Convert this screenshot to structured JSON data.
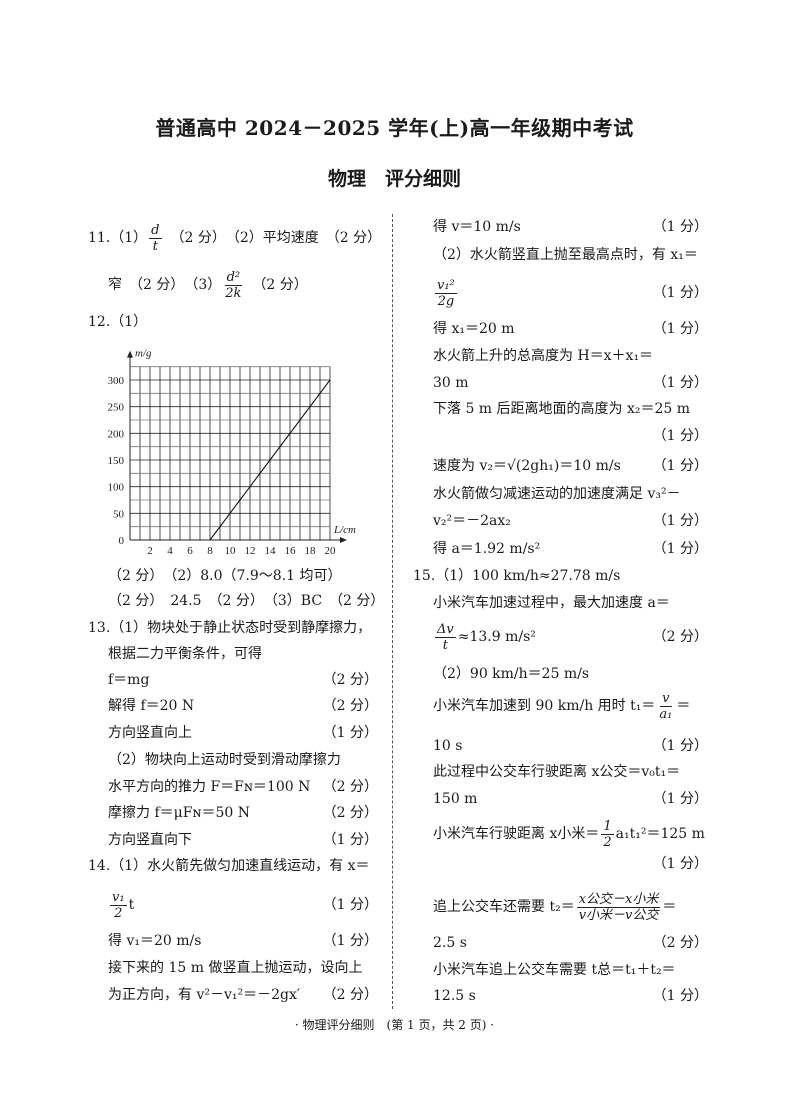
{
  "header": {
    "title": "普通高中 2024－2025 学年(上)高一年级期中考试",
    "subtitle": "物理　评分细则"
  },
  "left_lines": [
    {
      "y": 238,
      "x": 88,
      "parts": [
        {
          "t": "11.（1）"
        },
        {
          "num": "d",
          "den": "t"
        },
        {
          "t": "　（2 分）　（2）平均速度　（2 分）"
        }
      ]
    },
    {
      "y": 285,
      "x": 108,
      "parts": [
        {
          "t": "窄　（2 分）　（3）"
        },
        {
          "num": "d²",
          "den": "2k"
        },
        {
          "t": "　（2 分）"
        }
      ]
    },
    {
      "y": 322,
      "x": 88,
      "parts": [
        {
          "t": "12.（1）"
        }
      ]
    },
    {
      "y": 576,
      "x": 108,
      "parts": [
        {
          "t": "（2 分）　（2）8.0（7.9～8.1 均可）"
        }
      ]
    },
    {
      "y": 601,
      "x": 108,
      "parts": [
        {
          "t": "（2 分）　24.5　（2 分）　（3）BC　（2 分）"
        }
      ]
    },
    {
      "y": 628,
      "x": 88,
      "parts": [
        {
          "t": "13.（1）物块处于静止状态时受到静摩擦力，"
        }
      ]
    },
    {
      "y": 654,
      "x": 108,
      "parts": [
        {
          "t": "根据二力平衡条件，可得"
        }
      ]
    },
    {
      "y": 680,
      "x": 108,
      "parts": [
        {
          "t": "f＝mg"
        }
      ],
      "score": "（2 分）"
    },
    {
      "y": 706,
      "x": 108,
      "parts": [
        {
          "t": "解得 f＝20 N"
        }
      ],
      "score": "（2 分）"
    },
    {
      "y": 733,
      "x": 108,
      "parts": [
        {
          "t": "方向竖直向上"
        }
      ],
      "score": "（1 分）"
    },
    {
      "y": 760,
      "x": 108,
      "parts": [
        {
          "t": "（2）物块向上运动时受到滑动摩擦力"
        }
      ]
    },
    {
      "y": 787,
      "x": 108,
      "parts": [
        {
          "t": "水平方向的推力 F＝Fɴ＝100 N"
        }
      ],
      "score": "（2 分）"
    },
    {
      "y": 813,
      "x": 108,
      "parts": [
        {
          "t": "摩擦力 f＝μFɴ＝50 N"
        }
      ],
      "score": "（2 分）"
    },
    {
      "y": 840,
      "x": 108,
      "parts": [
        {
          "t": "方向竖直向下"
        }
      ],
      "score": "（1 分）"
    },
    {
      "y": 866,
      "x": 88,
      "parts": [
        {
          "t": "14.（1）水火箭先做匀加速直线运动，有 x＝"
        }
      ]
    },
    {
      "y": 905,
      "x": 108,
      "parts": [
        {
          "num": "v₁",
          "den": "2"
        },
        {
          "t": "t"
        }
      ],
      "score": "（1 分）"
    },
    {
      "y": 941,
      "x": 108,
      "parts": [
        {
          "t": "得 v₁＝20 m/s"
        }
      ],
      "score": "（1 分）"
    },
    {
      "y": 968,
      "x": 108,
      "parts": [
        {
          "t": "接下来的 15 m 做竖直上抛运动，设向上"
        }
      ]
    },
    {
      "y": 995,
      "x": 108,
      "parts": [
        {
          "t": "为正方向，有 v²－v₁²＝－2gx′"
        }
      ],
      "score": "（2 分）"
    }
  ],
  "right_lines": [
    {
      "y": 227,
      "x": 433,
      "parts": [
        {
          "t": "得 v＝10 m/s"
        }
      ],
      "score": "（1 分）"
    },
    {
      "y": 255,
      "x": 433,
      "parts": [
        {
          "t": "（2）水火箭竖直上抛至最高点时，有 x₁＝"
        }
      ]
    },
    {
      "y": 293,
      "x": 433,
      "parts": [
        {
          "num": "v₁²",
          "den": "2g"
        }
      ],
      "score": "（1 分）"
    },
    {
      "y": 329,
      "x": 433,
      "parts": [
        {
          "t": "得 x₁＝20 m"
        }
      ],
      "score": "（1 分）"
    },
    {
      "y": 356,
      "x": 433,
      "parts": [
        {
          "t": "水火箭上升的总高度为 H＝x＋x₁＝"
        }
      ]
    },
    {
      "y": 383,
      "x": 433,
      "parts": [
        {
          "t": "30 m"
        }
      ],
      "score": "（1 分）"
    },
    {
      "y": 409,
      "x": 433,
      "parts": [
        {
          "t": "下落 5 m 后距离地面的高度为 x₂＝25 m"
        }
      ]
    },
    {
      "y": 436,
      "x": 433,
      "parts": [],
      "score": "（1 分）"
    },
    {
      "y": 466,
      "x": 433,
      "parts": [
        {
          "t": "速度为 v₂＝√(2gh₁)＝10 m/s"
        }
      ],
      "score": "（1 分）"
    },
    {
      "y": 494,
      "x": 433,
      "parts": [
        {
          "t": "水火箭做匀减速运动的加速度满足 v₃²－"
        }
      ]
    },
    {
      "y": 521,
      "x": 433,
      "parts": [
        {
          "t": "v₂²＝－2ax₂"
        }
      ],
      "score": "（1 分）"
    },
    {
      "y": 549,
      "x": 433,
      "parts": [
        {
          "t": "得 a＝1.92 m/s²"
        }
      ],
      "score": "（1 分）"
    },
    {
      "y": 576,
      "x": 413,
      "parts": [
        {
          "t": "15.（1）100 km/h≈27.78 m/s"
        }
      ]
    },
    {
      "y": 603,
      "x": 433,
      "parts": [
        {
          "t": "小米汽车加速过程中，最大加速度 a＝"
        }
      ]
    },
    {
      "y": 637,
      "x": 433,
      "parts": [
        {
          "num": "Δv",
          "den": "t"
        },
        {
          "t": "≈13.9 m/s²"
        }
      ],
      "score": "（2 分）"
    },
    {
      "y": 674,
      "x": 433,
      "parts": [
        {
          "t": "（2）90 km/h＝25 m/s"
        }
      ]
    },
    {
      "y": 706,
      "x": 433,
      "parts": [
        {
          "t": "小米汽车加速到 90 km/h 用时 t₁＝"
        },
        {
          "num": "v",
          "den": "a₁"
        },
        {
          "t": "＝"
        }
      ]
    },
    {
      "y": 746,
      "x": 433,
      "parts": [
        {
          "t": "10 s"
        }
      ],
      "score": "（1 分）"
    },
    {
      "y": 772,
      "x": 433,
      "parts": [
        {
          "t": "此过程中公交车行驶距离 x公交＝v₀t₁＝"
        }
      ]
    },
    {
      "y": 799,
      "x": 433,
      "parts": [
        {
          "t": "150 m"
        }
      ],
      "score": "（1 分）"
    },
    {
      "y": 834,
      "x": 433,
      "parts": [
        {
          "t": "小米汽车行驶距离 x小米＝"
        },
        {
          "num": "1",
          "den": "2"
        },
        {
          "t": "a₁t₁²＝125 m"
        }
      ]
    },
    {
      "y": 864,
      "x": 433,
      "parts": [],
      "score": "（1 分）"
    },
    {
      "y": 907,
      "x": 433,
      "parts": [
        {
          "t": "追上公交车还需要 t₂＝"
        },
        {
          "num": "x公交－x小米",
          "den": "v小米－v公交"
        },
        {
          "t": "＝"
        }
      ]
    },
    {
      "y": 943,
      "x": 433,
      "parts": [
        {
          "t": "2.5 s"
        }
      ],
      "score": "（2 分）"
    },
    {
      "y": 970,
      "x": 433,
      "parts": [
        {
          "t": "小米汽车追上公交车需要 t总＝t₁＋t₂＝"
        }
      ]
    },
    {
      "y": 996,
      "x": 433,
      "parts": [
        {
          "t": "12.5 s"
        }
      ],
      "score": "（1 分）"
    }
  ],
  "chart_data": {
    "type": "line",
    "xlabel": "L/cm",
    "ylabel": "m/g",
    "x_ticks": [
      "2",
      "4",
      "6",
      "8",
      "10",
      "12",
      "14",
      "16",
      "18",
      "20"
    ],
    "y_ticks": [
      "0",
      "50",
      "100",
      "150",
      "200",
      "250",
      "300"
    ],
    "xlim": [
      0,
      20
    ],
    "ylim": [
      0,
      325
    ],
    "grid": true,
    "grid_step": {
      "x": 1,
      "y": 25
    },
    "series": [
      {
        "x": [
          8,
          20
        ],
        "y": [
          0,
          300
        ]
      }
    ]
  },
  "footer": "· 物理评分细则　(第 1 页，共 2 页) ·"
}
